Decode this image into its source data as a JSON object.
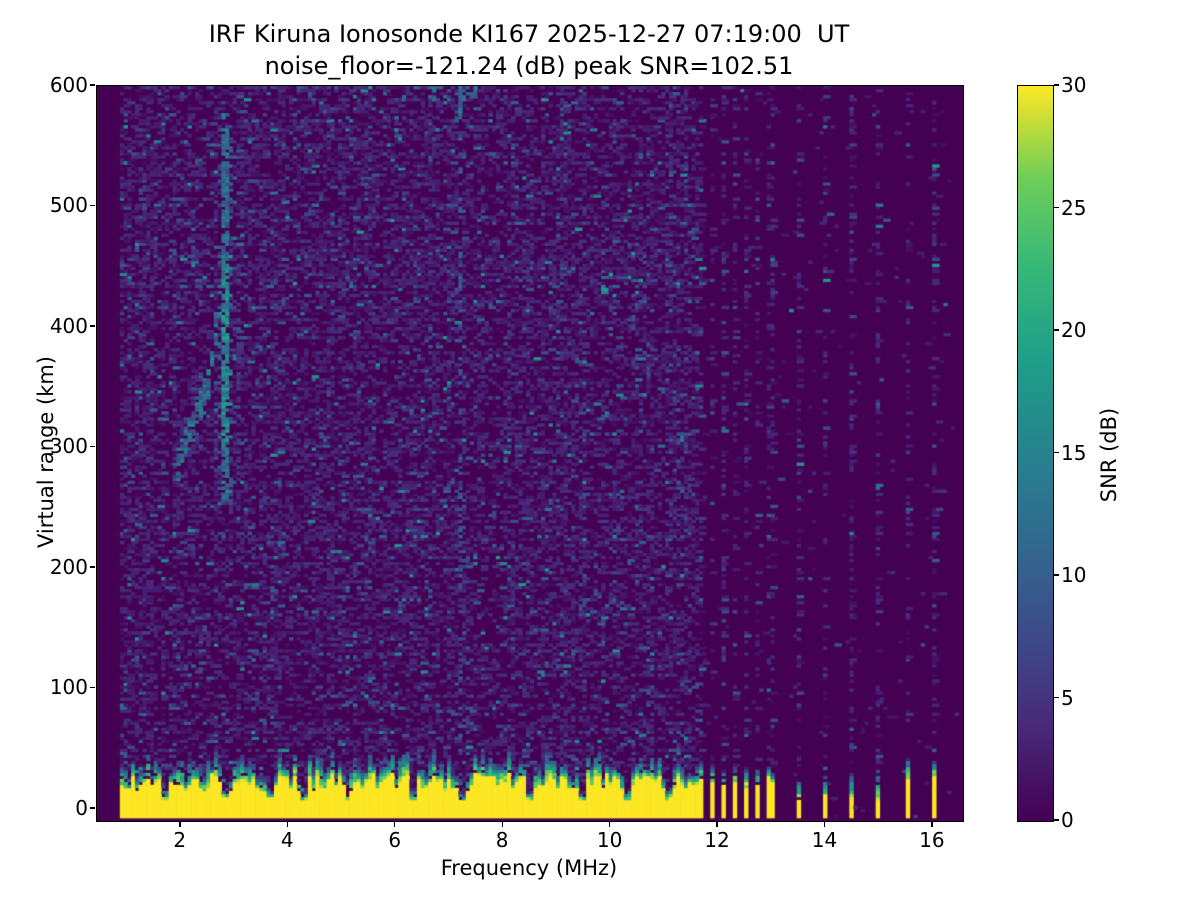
{
  "figure": {
    "background": "#ffffff",
    "text_color": "#000000"
  },
  "chart_data": {
    "type": "heatmap",
    "title_line1": "IRF Kiruna Ionosonde KI167 2025-12-27 07:19:00  UT",
    "title_line2": "noise_floor=-121.24 (dB) peak SNR=102.51",
    "station": "IRF Kiruna Ionosonde KI167",
    "timestamp_ut": "2025-12-27 07:19:00 UT",
    "noise_floor_db": -121.24,
    "peak_snr_db": 102.51,
    "xlabel": "Frequency (MHz)",
    "ylabel": "Virtual range (km)",
    "colorbar_label": "SNR (dB)",
    "xlim": [
      0.44,
      16.56
    ],
    "ylim": [
      -10,
      600
    ],
    "clim": [
      0,
      30
    ],
    "x_ticks": [
      2,
      4,
      6,
      8,
      10,
      12,
      14,
      16
    ],
    "x_tick_labels": [
      "2",
      "4",
      "6",
      "8",
      "10",
      "12",
      "14",
      "16"
    ],
    "y_ticks": [
      0,
      100,
      200,
      300,
      400,
      500,
      600
    ],
    "y_tick_labels": [
      "0",
      "100",
      "200",
      "300",
      "400",
      "500",
      "600"
    ],
    "colorbar_ticks": [
      0,
      5,
      10,
      15,
      20,
      25,
      30
    ],
    "colorbar_tick_labels": [
      "0",
      "5",
      "10",
      "15",
      "20",
      "25",
      "30"
    ],
    "colormap": "viridis",
    "viridis_stops": [
      [
        0.0,
        68,
        1,
        84
      ],
      [
        0.125,
        72,
        40,
        120
      ],
      [
        0.25,
        62,
        74,
        137
      ],
      [
        0.375,
        49,
        104,
        142
      ],
      [
        0.5,
        38,
        130,
        142
      ],
      [
        0.625,
        31,
        158,
        137
      ],
      [
        0.75,
        53,
        183,
        121
      ],
      [
        0.875,
        110,
        206,
        88
      ],
      [
        1.0,
        253,
        231,
        37
      ]
    ],
    "seed": 167,
    "grid": {
      "freq_start": 0.9,
      "freq_end": 16.45,
      "freq_step": 0.07,
      "range_step_km": 2.5
    },
    "features": {
      "ground_clutter": {
        "freq_range_mhz": [
          0.9,
          11.63
        ],
        "value_db": 30,
        "yellow_top_km": [
          13,
          27
        ],
        "mix_top_extra_km": [
          7,
          23
        ],
        "notches_mhz": [
          1.7,
          2.8,
          3.64,
          4.27,
          5.1,
          6.31,
          7.24,
          8.5,
          9.5,
          10.3,
          11.1
        ]
      },
      "dense_bars_mhz": [
        11.7,
        11.89,
        12.09,
        12.31,
        12.54,
        12.74,
        12.97
      ],
      "sparse_bars": [
        {
          "f": 13.49,
          "yellow_top_km": 7,
          "mix_top_km": 24
        },
        {
          "f": 13.99,
          "yellow_top_km": 9,
          "mix_top_km": 26
        },
        {
          "f": 14.49,
          "yellow_top_km": 8,
          "mix_top_km": 25
        },
        {
          "f": 14.99,
          "yellow_top_km": 7,
          "mix_top_km": 28
        },
        {
          "f": 15.55,
          "yellow_top_km": 26,
          "mix_top_km": 38
        },
        {
          "f": 16.02,
          "yellow_top_km": 30,
          "mix_top_km": 40
        }
      ],
      "echo_trace": {
        "critical_freq_mhz": 2.83,
        "vertical_km": [
          255,
          565
        ],
        "core_km": [
          305,
          445
        ],
        "diagonal_from": [
          1.95,
          285
        ],
        "diagonal_mid": [
          2.5,
          350
        ],
        "diagonal_to": [
          2.75,
          430
        ]
      },
      "interference_column_mhz": 7.23,
      "noise_model": {
        "base_prob_continuous": 0.4,
        "base_prob_bar_column": 0.3,
        "gap_prob": 0.01,
        "faint_db": [
          1.2,
          4.5
        ],
        "mid_db": [
          4,
          10
        ],
        "bright_db": [
          10,
          18
        ]
      }
    }
  }
}
